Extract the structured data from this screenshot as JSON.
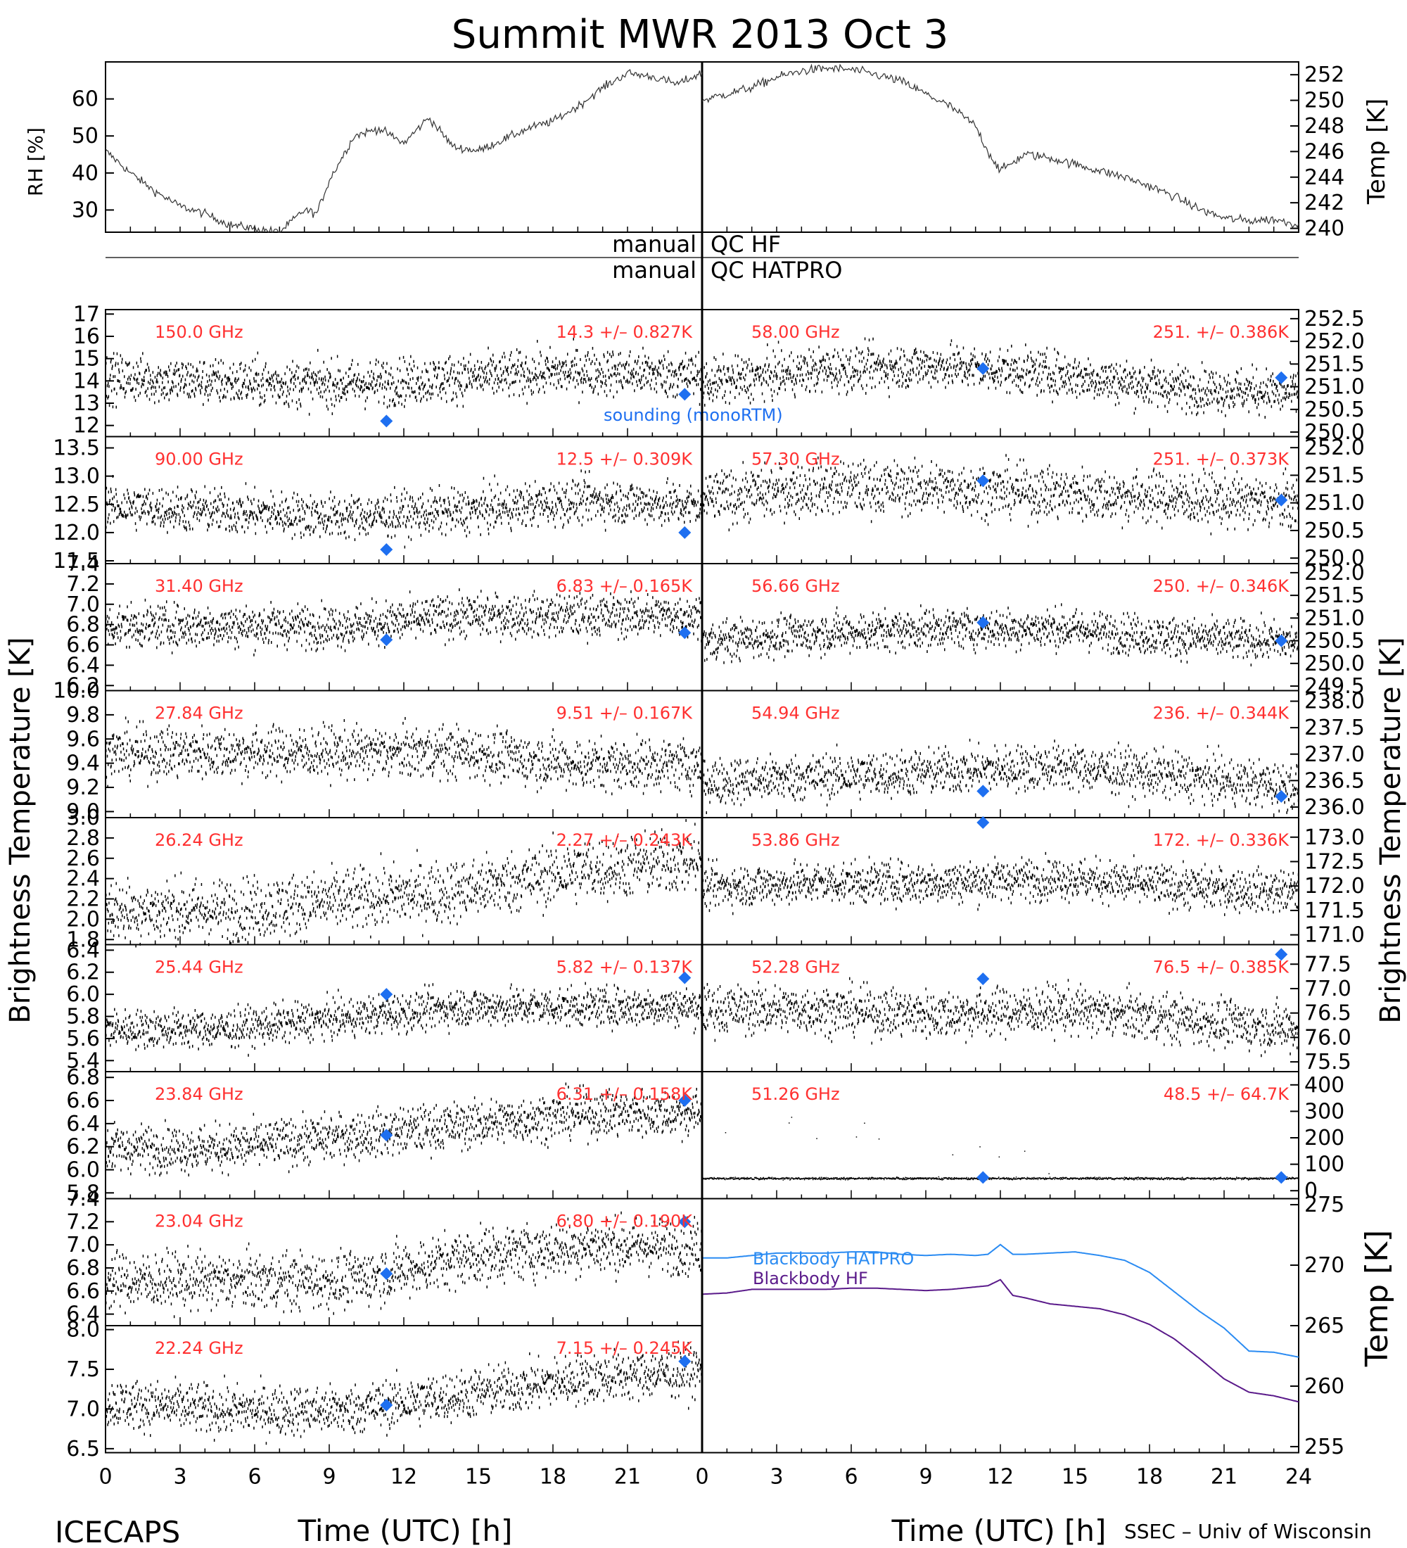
{
  "title": "Summit MWR 2013 Oct  3",
  "footer": {
    "left": "ICECAPS",
    "right": "SSEC – Univ of Wisconsin"
  },
  "colors": {
    "sounding": "#1e6ff0",
    "channel_label": "#ff3030",
    "hatpro": "#2a8bf2",
    "hf": "#5a1a8a"
  },
  "chart_data": [
    {
      "type": "line",
      "id": "rh",
      "ylabel": "RH [%]",
      "ylim": [
        24,
        70
      ],
      "yticks": [
        30,
        40,
        50,
        60
      ],
      "x": [
        0,
        1,
        2,
        3,
        4,
        5,
        6,
        7,
        7.5,
        8,
        8.5,
        9,
        10,
        11,
        12,
        13,
        14,
        15,
        16,
        17,
        18,
        19,
        20,
        21,
        22,
        23,
        24
      ],
      "values": [
        46,
        40,
        35,
        31,
        29,
        26,
        25,
        24,
        27,
        30,
        29,
        38,
        50,
        52,
        48,
        55,
        47,
        46,
        49,
        52,
        54,
        58,
        63,
        67,
        66,
        64,
        67
      ]
    },
    {
      "type": "line",
      "id": "temp",
      "ylabel": "Temp [K]",
      "ylim": [
        239.7,
        253
      ],
      "yticks": [
        240,
        242,
        244,
        246,
        248,
        250,
        252
      ],
      "x": [
        0,
        1,
        2,
        3,
        4,
        5,
        6,
        7,
        8,
        9,
        10,
        11,
        11.5,
        12,
        13,
        14,
        15,
        16,
        17,
        18,
        19,
        20,
        21,
        22,
        23,
        24
      ],
      "values": [
        250,
        250.5,
        251,
        251.8,
        252.3,
        252.5,
        252.4,
        252,
        251.5,
        250.5,
        249.5,
        248,
        246,
        244.5,
        245.8,
        245.5,
        245,
        244.5,
        244,
        243.3,
        242.5,
        241.5,
        240.8,
        240.6,
        240.7,
        240.3
      ]
    },
    {
      "type": "text",
      "id": "qc",
      "labels": [
        "manual",
        "QC HF",
        "manual",
        "QC HATPRO"
      ]
    },
    {
      "type": "scatter",
      "id": "tb_hf",
      "group_ylabel": "Brightness Temperature [K]",
      "xlabel": "Time (UTC) [h]",
      "xlim": [
        0,
        24
      ],
      "xticks": [
        0,
        3,
        6,
        9,
        12,
        15,
        18,
        21
      ],
      "legend": "sounding (monoRTM)",
      "panels": [
        {
          "freq": "150.0 GHz",
          "stat": "14.3 +/– 0.827K",
          "ylim": [
            11.5,
            17.2
          ],
          "yticks": [
            12,
            13,
            14,
            15,
            16,
            17
          ],
          "mean": 14.3,
          "std": 0.827,
          "trend": [
            14.2,
            14.0,
            13.9,
            14.2,
            14.5,
            14.3
          ],
          "sounding": [
            [
              11.3,
              12.2
            ],
            [
              23.3,
              13.4
            ]
          ]
        },
        {
          "freq": "90.00 GHz",
          "stat": "12.5 +/– 0.309K",
          "ylim": [
            11.45,
            13.7
          ],
          "yticks": [
            11.5,
            12.0,
            12.5,
            13.0,
            13.5
          ],
          "mean": 12.5,
          "std": 0.309,
          "trend": [
            12.5,
            12.4,
            12.3,
            12.4,
            12.6,
            12.5
          ],
          "sounding": [
            [
              11.3,
              11.7
            ],
            [
              23.3,
              12.0
            ]
          ]
        },
        {
          "freq": "31.40 GHz",
          "stat": "6.83 +/– 0.165K",
          "ylim": [
            6.15,
            7.4
          ],
          "yticks": [
            6.2,
            6.4,
            6.6,
            6.8,
            7.0,
            7.2,
            7.4
          ],
          "mean": 6.83,
          "std": 0.165,
          "trend": [
            6.8,
            6.8,
            6.8,
            6.9,
            6.9,
            6.9
          ],
          "sounding": [
            [
              11.3,
              6.65
            ],
            [
              23.3,
              6.72
            ]
          ]
        },
        {
          "freq": "27.84 GHz",
          "stat": "9.51 +/– 0.167K",
          "ylim": [
            8.95,
            10.0
          ],
          "yticks": [
            9.0,
            9.2,
            9.4,
            9.6,
            9.8,
            10.0
          ],
          "mean": 9.51,
          "std": 0.167,
          "trend": [
            9.5,
            9.5,
            9.5,
            9.5,
            9.4,
            9.4
          ],
          "sounding": []
        },
        {
          "freq": "26.24 GHz",
          "stat": "2.27 +/– 0.243K",
          "ylim": [
            1.75,
            3.0
          ],
          "yticks": [
            1.8,
            2.0,
            2.2,
            2.4,
            2.6,
            2.8,
            3.0
          ],
          "mean": 2.27,
          "std": 0.243,
          "trend": [
            2.1,
            2.1,
            2.2,
            2.3,
            2.5,
            2.6
          ],
          "sounding": []
        },
        {
          "freq": "25.44 GHz",
          "stat": "5.82 +/– 0.137K",
          "ylim": [
            5.3,
            6.45
          ],
          "yticks": [
            5.4,
            5.6,
            5.8,
            6.0,
            6.2,
            6.4
          ],
          "mean": 5.82,
          "std": 0.137,
          "trend": [
            5.7,
            5.7,
            5.8,
            5.9,
            5.9,
            5.9
          ],
          "sounding": [
            [
              11.3,
              6.0
            ],
            [
              23.3,
              6.15
            ]
          ]
        },
        {
          "freq": "23.84 GHz",
          "stat": "6.31 +/– 0.158K",
          "ylim": [
            5.75,
            6.85
          ],
          "yticks": [
            5.8,
            6.0,
            6.2,
            6.4,
            6.6,
            6.8
          ],
          "mean": 6.31,
          "std": 0.158,
          "trend": [
            6.2,
            6.2,
            6.3,
            6.4,
            6.5,
            6.5
          ],
          "sounding": [
            [
              11.3,
              6.3
            ],
            [
              23.3,
              6.6
            ]
          ]
        },
        {
          "freq": "23.04 GHz",
          "stat": "6.80 +/– 0.190K",
          "ylim": [
            6.3,
            7.4
          ],
          "yticks": [
            6.4,
            6.6,
            6.8,
            7.0,
            7.2,
            7.4
          ],
          "mean": 6.8,
          "std": 0.19,
          "trend": [
            6.7,
            6.7,
            6.7,
            6.9,
            7.0,
            7.0
          ],
          "sounding": [
            [
              11.3,
              6.75
            ],
            [
              23.3,
              7.2
            ]
          ]
        },
        {
          "freq": "22.24 GHz",
          "stat": "7.15 +/– 0.245K",
          "ylim": [
            6.45,
            8.05
          ],
          "yticks": [
            6.5,
            7.0,
            7.5,
            8.0
          ],
          "mean": 7.15,
          "std": 0.245,
          "trend": [
            7.1,
            7.0,
            7.0,
            7.2,
            7.4,
            7.5
          ],
          "sounding": [
            [
              11.3,
              7.05
            ],
            [
              23.3,
              7.6
            ]
          ]
        }
      ]
    },
    {
      "type": "scatter",
      "id": "tb_hatpro",
      "group_ylabel": "Brightness Temperature [K]",
      "xlabel": "Time (UTC) [h]",
      "xlim": [
        0,
        24
      ],
      "xticks": [
        0,
        3,
        6,
        9,
        12,
        15,
        18,
        21,
        24
      ],
      "panels": [
        {
          "freq": "58.00 GHz",
          "stat": "251. +/– 0.386K",
          "ylim": [
            249.9,
            252.7
          ],
          "yticks": [
            250.0,
            250.5,
            251.0,
            251.5,
            252.0,
            252.5
          ],
          "mean": 251.2,
          "std": 0.386,
          "trend": [
            251.1,
            251.4,
            251.5,
            251.3,
            251.0,
            250.9
          ],
          "sounding": [
            [
              11.3,
              251.4
            ],
            [
              23.3,
              251.2
            ]
          ]
        },
        {
          "freq": "57.30 GHz",
          "stat": "251. +/– 0.373K",
          "ylim": [
            249.9,
            252.2
          ],
          "yticks": [
            250.0,
            250.5,
            251.0,
            251.5,
            252.0
          ],
          "mean": 251.2,
          "std": 0.373,
          "trend": [
            251.1,
            251.3,
            251.3,
            251.2,
            251.1,
            251.0
          ],
          "sounding": [
            [
              11.3,
              251.4
            ],
            [
              23.3,
              251.05
            ]
          ]
        },
        {
          "freq": "56.66 GHz",
          "stat": "250. +/– 0.346K",
          "ylim": [
            249.4,
            252.2
          ],
          "yticks": [
            249.5,
            250.0,
            250.5,
            251.0,
            251.5,
            252.0
          ],
          "mean": 250.6,
          "std": 0.346,
          "trend": [
            250.5,
            250.7,
            250.8,
            250.8,
            250.6,
            250.5
          ],
          "sounding": [
            [
              11.3,
              250.9
            ],
            [
              23.3,
              250.5
            ]
          ]
        },
        {
          "freq": "54.94 GHz",
          "stat": "236. +/– 0.344K",
          "ylim": [
            235.8,
            238.2
          ],
          "yticks": [
            236.0,
            236.5,
            237.0,
            237.5,
            238.0
          ],
          "mean": 236.6,
          "std": 0.344,
          "trend": [
            236.5,
            236.6,
            236.7,
            236.8,
            236.6,
            236.4
          ],
          "sounding": [
            [
              11.3,
              236.3
            ],
            [
              23.3,
              236.2
            ]
          ]
        },
        {
          "freq": "53.86 GHz",
          "stat": "172. +/– 0.336K",
          "ylim": [
            170.8,
            173.4
          ],
          "yticks": [
            171.0,
            171.5,
            172.0,
            172.5,
            173.0
          ],
          "mean": 172.0,
          "std": 0.336,
          "trend": [
            172.0,
            172.1,
            172.1,
            172.2,
            172.0,
            171.9
          ],
          "sounding": [
            [
              11.3,
              173.3
            ]
          ]
        },
        {
          "freq": "52.28 GHz",
          "stat": "76.5 +/– 0.385K",
          "ylim": [
            75.3,
            77.9
          ],
          "yticks": [
            75.5,
            76.0,
            76.5,
            77.0,
            77.5
          ],
          "mean": 76.5,
          "std": 0.385,
          "trend": [
            76.6,
            76.6,
            76.5,
            76.6,
            76.4,
            76.2
          ],
          "sounding": [
            [
              11.3,
              77.2
            ],
            [
              23.3,
              77.7
            ]
          ]
        },
        {
          "freq": "51.26 GHz",
          "stat": "48.5 +/– 64.7K",
          "ylim": [
            -30,
            450
          ],
          "yticks": [
            0,
            100,
            200,
            300,
            400
          ],
          "mean": 48.5,
          "std": 64.7,
          "trend": [
            48,
            48,
            48,
            48,
            48,
            48
          ],
          "sounding": [
            [
              11.3,
              50
            ],
            [
              23.3,
              50
            ]
          ]
        }
      ]
    },
    {
      "type": "line",
      "id": "blackbody",
      "ylabel": "Temp [K]",
      "ylim": [
        254.5,
        275.5
      ],
      "yticks": [
        255,
        260,
        265,
        270,
        275
      ],
      "series": [
        {
          "name": "Blackbody HATPRO",
          "x": [
            0,
            1,
            2,
            3,
            4,
            5,
            6,
            7,
            8,
            9,
            10,
            11,
            11.5,
            12,
            12.5,
            13,
            14,
            15,
            16,
            17,
            18,
            19,
            20,
            21,
            22,
            23,
            24
          ],
          "values": [
            270.6,
            270.6,
            270.8,
            271.0,
            271.0,
            271.0,
            271.1,
            271.1,
            270.9,
            270.8,
            270.9,
            270.8,
            270.9,
            271.7,
            270.9,
            270.9,
            271.0,
            271.1,
            270.8,
            270.4,
            269.4,
            267.8,
            266.2,
            264.8,
            262.9,
            262.8,
            262.4
          ]
        },
        {
          "name": "Blackbody HF",
          "x": [
            0,
            1,
            2,
            3,
            4,
            5,
            6,
            7,
            8,
            9,
            10,
            11,
            11.5,
            12,
            12.5,
            13,
            14,
            15,
            16,
            17,
            18,
            19,
            20,
            21,
            22,
            23,
            24
          ],
          "values": [
            267.6,
            267.7,
            268.0,
            268.0,
            268.0,
            268.0,
            268.1,
            268.1,
            268.0,
            267.9,
            268.0,
            268.2,
            268.3,
            268.8,
            267.5,
            267.3,
            266.8,
            266.6,
            266.4,
            265.9,
            265.1,
            263.9,
            262.3,
            260.6,
            259.5,
            259.2,
            258.7
          ]
        }
      ]
    }
  ]
}
